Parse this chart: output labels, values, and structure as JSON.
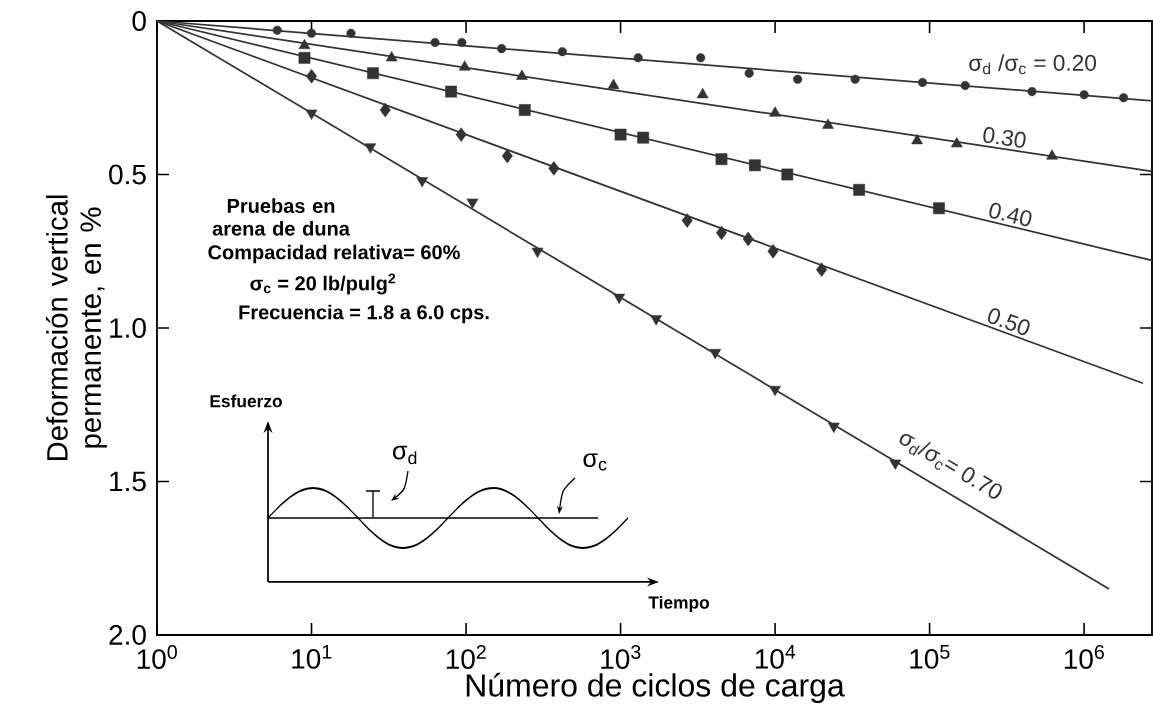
{
  "chart_data": {
    "type": "line",
    "xlabel": "Número de ciclos de carga",
    "ylabel": "Deformación vertical permanente, en %",
    "log": "x",
    "xlim": [
      1,
      2750000
    ],
    "ylim": [
      2.0,
      0
    ],
    "xticks": [
      {
        "value": 1,
        "label": "10$^{0}$"
      },
      {
        "value": 10,
        "label": "10$^{1}$"
      },
      {
        "value": 100,
        "label": "10$^{2}$"
      },
      {
        "value": 1000,
        "label": "10$^{3}$"
      },
      {
        "value": 10000,
        "label": "10$^{4}$"
      },
      {
        "value": 100000,
        "label": "10$^{5}$"
      },
      {
        "value": 1000000,
        "label": "10$^{6}$"
      }
    ],
    "yticks": [
      0,
      0.5,
      {
        "value": 1,
        "label": "1.0"
      },
      1.5,
      {
        "value": 2,
        "label": "2.0"
      }
    ],
    "series": [
      {
        "name": "σ$_{d}$ /σ$_{c}$ = 0.20",
        "type": "line",
        "color": "#333333",
        "x": [
          1,
          2750000
        ],
        "values": [
          0,
          0.26
        ]
      },
      {
        "type": "scatter",
        "marker": "circle",
        "color": "#333333",
        "x": [
          6,
          10,
          18,
          63,
          94,
          170,
          420,
          1300,
          3300,
          6800,
          14000,
          33000,
          90000,
          170000,
          460000,
          1000000,
          1800000
        ],
        "values": [
          0.03,
          0.04,
          0.04,
          0.07,
          0.07,
          0.09,
          0.1,
          0.12,
          0.12,
          0.17,
          0.19,
          0.19,
          0.2,
          0.21,
          0.23,
          0.24,
          0.25
        ]
      },
      {
        "name": "0.30",
        "type": "line",
        "color": "#333333",
        "x": [
          1,
          2750000
        ],
        "values": [
          0,
          0.49
        ]
      },
      {
        "type": "scatter",
        "marker": "triangle",
        "color": "#333333",
        "x": [
          9,
          33,
          98,
          230,
          900,
          3400,
          10000,
          22000,
          83000,
          150000,
          620000
        ],
        "values": [
          0.08,
          0.12,
          0.15,
          0.18,
          0.21,
          0.24,
          0.3,
          0.34,
          0.39,
          0.4,
          0.44
        ]
      },
      {
        "name": "0.40",
        "type": "line",
        "color": "#333333",
        "x": [
          1,
          2750000
        ],
        "values": [
          0,
          0.78
        ]
      },
      {
        "type": "scatter",
        "marker": "square",
        "color": "#333333",
        "x": [
          9,
          25,
          80,
          240,
          1000,
          1400,
          4500,
          7400,
          12000,
          35000,
          115000
        ],
        "values": [
          0.12,
          0.17,
          0.23,
          0.29,
          0.37,
          0.38,
          0.45,
          0.47,
          0.5,
          0.55,
          0.61
        ]
      },
      {
        "name": "0.50",
        "type": "line",
        "color": "#333333",
        "x": [
          1,
          2400000
        ],
        "values": [
          0,
          1.18
        ]
      },
      {
        "type": "scatter",
        "marker": "diamond",
        "color": "#333333",
        "x": [
          10,
          30,
          93,
          185,
          370,
          2700,
          4500,
          6700,
          9700,
          20000
        ],
        "values": [
          0.18,
          0.29,
          0.37,
          0.44,
          0.48,
          0.65,
          0.69,
          0.71,
          0.75,
          0.81
        ]
      },
      {
        "name": "σ$_{d}$/σ$_{c}$= 0.70",
        "type": "line",
        "color": "#333333",
        "x": [
          1,
          1450000
        ],
        "values": [
          0,
          1.85
        ]
      },
      {
        "type": "scatter",
        "marker": "triangle down",
        "color": "#333333",
        "x": [
          10,
          24,
          52,
          110,
          290,
          980,
          1700,
          4100,
          10000,
          24000,
          60000
        ],
        "values": [
          0.3,
          0.41,
          0.52,
          0.59,
          0.75,
          0.9,
          0.97,
          1.08,
          1.2,
          1.32,
          1.44
        ]
      }
    ],
    "annotations": [
      "Pruebas en arena de duna",
      "Compacidad relativa= 60%",
      "σ$_{c}$ = 20 lb/pulg$^{2}$",
      "Frecuencia = 1.8 a 6.0 cps.",
      "Esfuerzo",
      "Tiempo",
      "σ$_{d}$",
      "σ$_{c}$"
    ]
  }
}
